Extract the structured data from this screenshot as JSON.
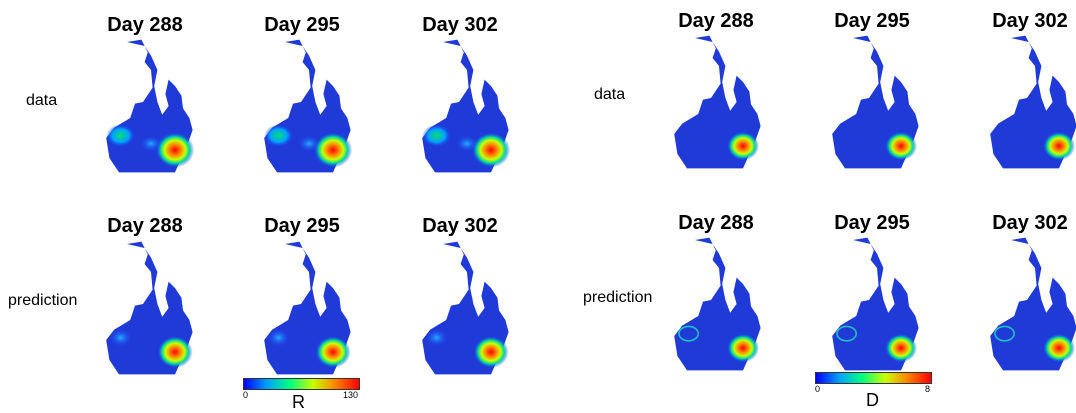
{
  "left_panel": {
    "titles_top": [
      "Day 288",
      "Day 295",
      "Day 302"
    ],
    "titles_bottom": [
      "Day 288",
      "Day 295",
      "Day 302"
    ],
    "row_labels": [
      "data",
      "prediction"
    ],
    "colorbar": {
      "min": "0",
      "max": "130",
      "label": "R",
      "colors": [
        "#0000ff",
        "#00a0ff",
        "#00ff80",
        "#c8ff00",
        "#ff8000",
        "#ff0000"
      ]
    }
  },
  "right_panel": {
    "titles_top": [
      "Day 288",
      "Day 295",
      "Day 302"
    ],
    "titles_bottom": [
      "Day 288",
      "Day 295",
      "Day 302"
    ],
    "row_labels": [
      "data",
      "prediction"
    ],
    "colorbar": {
      "min": "0",
      "max": "8",
      "label": "D",
      "colors": [
        "#0000ff",
        "#00a0ff",
        "#00ff80",
        "#c8ff00",
        "#ff8000",
        "#ff0000"
      ]
    }
  }
}
